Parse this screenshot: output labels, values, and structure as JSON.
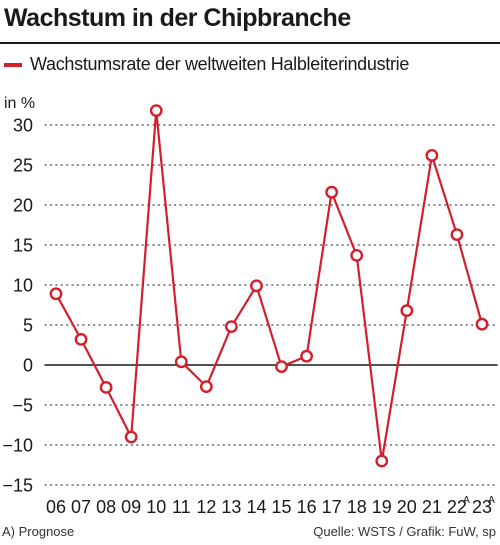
{
  "title": "Wachstum in der Chipbranche",
  "legend": {
    "label": "Wachstumsrate der weltweiten Halbleiterindustrie",
    "color": "#d31f2c"
  },
  "footer": {
    "note": "A) Prognose",
    "source": "Quelle: WSTS / Grafik: FuW, sp"
  },
  "chart_data": {
    "type": "line",
    "title": "Wachstum in der Chipbranche",
    "ylabel": "in %",
    "xlabel": "",
    "ylim": [
      -15,
      30
    ],
    "yticks": [
      30,
      25,
      20,
      15,
      10,
      5,
      0,
      -5,
      -10,
      -15
    ],
    "grid": "horizontal dotted",
    "legend_position": "top-left",
    "categories": [
      "06",
      "07",
      "08",
      "09",
      "10",
      "11",
      "12",
      "13",
      "14",
      "15",
      "16",
      "17",
      "18",
      "19",
      "20",
      "21",
      "22",
      "23"
    ],
    "category_superscripts": [
      "",
      "",
      "",
      "",
      "",
      "",
      "",
      "",
      "",
      "",
      "",
      "",
      "",
      "",
      "",
      "",
      "A",
      "A"
    ],
    "series": [
      {
        "name": "Wachstumsrate der weltweiten Halbleiterindustrie",
        "color": "#d31f2c",
        "values": [
          8.9,
          3.2,
          -2.8,
          -9.0,
          31.8,
          0.4,
          -2.7,
          4.8,
          9.9,
          -0.2,
          1.1,
          21.6,
          13.7,
          -12.0,
          6.8,
          26.2,
          16.3,
          5.1
        ]
      }
    ]
  }
}
